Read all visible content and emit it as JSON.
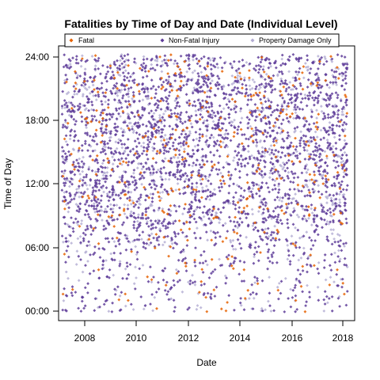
{
  "chart_data": {
    "type": "scatter",
    "title": "Fatalities by Time of Day and Date (Individual Level)",
    "xlabel": "Date",
    "ylabel": "Time of Day",
    "xlim": [
      "2006-11-15",
      "2018-04-10"
    ],
    "ylim": [
      "-00:48",
      "24:48"
    ],
    "x_ticks": [
      "2008",
      "2010",
      "2012",
      "2014",
      "2016",
      "2018"
    ],
    "y_ticks": [
      "00:00",
      "06:00",
      "12:00",
      "18:00",
      "24:00"
    ],
    "x_range": [
      "2007-01-01",
      "2017-12-31"
    ],
    "y_range": [
      "00:00",
      "24:00"
    ],
    "legend_position": "top",
    "grid": false,
    "series": [
      {
        "name": "Fatal",
        "color": "#e66101",
        "approx_points": 380,
        "marker": "diamond"
      },
      {
        "name": "Non-Fatal Injury",
        "color": "#5e3c99",
        "approx_points": 2600,
        "marker": "diamond"
      },
      {
        "name": "Property Damage Only",
        "color": "#b2abd2",
        "approx_points": 900,
        "marker": "diamond"
      }
    ],
    "density_note": "Points are densest 08:00–24:00 and sparse 00:00–06:00; clusters near 06:00–07:00 around 2012–2013."
  }
}
